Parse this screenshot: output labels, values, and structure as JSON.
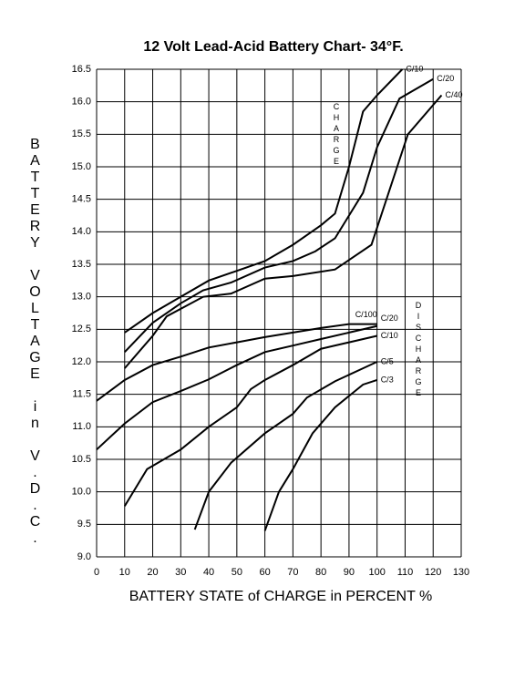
{
  "chart_data": {
    "type": "line",
    "title": "12 Volt Lead-Acid Battery Chart- 34°F.",
    "x_label": "BATTERY STATE of CHARGE in PERCENT %",
    "y_label": "BATTERY VOLTAGE in V.D.C.",
    "annotations": [
      "CHARGE",
      "DISCHARGE"
    ],
    "xlim": [
      0,
      130
    ],
    "xticks": [
      0,
      10,
      20,
      30,
      40,
      50,
      60,
      70,
      80,
      90,
      100,
      110,
      120,
      130
    ],
    "ylim": [
      9.0,
      16.5
    ],
    "yticks": [
      {
        "value": 9,
        "label": "9.0"
      },
      9.5,
      {
        "value": 10,
        "label": "10.0"
      },
      10.5,
      {
        "value": 11,
        "label": "11.0"
      },
      11.5,
      {
        "value": 12,
        "label": "12.0"
      },
      12.5,
      {
        "value": 13,
        "label": "13.0"
      },
      13.5,
      {
        "value": 14,
        "label": "14.0"
      },
      14.5,
      {
        "value": 15,
        "label": "15.0"
      },
      15.5,
      {
        "value": 16,
        "label": "16.0"
      },
      16.5
    ],
    "grid": true,
    "series": [
      {
        "name": "C/10",
        "color": "#000000",
        "x": [
          10,
          20,
          30,
          40,
          50,
          60,
          70,
          80,
          85,
          90,
          95,
          100,
          109
        ],
        "values": [
          12.45,
          12.75,
          13.0,
          13.25,
          13.4,
          13.55,
          13.8,
          14.1,
          14.28,
          15.0,
          15.85,
          16.1,
          16.5
        ]
      },
      {
        "name": "C/20",
        "color": "#000000",
        "x": [
          10,
          20,
          30,
          38,
          48,
          60,
          70,
          78,
          85,
          95,
          100,
          108,
          120
        ],
        "values": [
          12.15,
          12.6,
          12.9,
          13.1,
          13.22,
          13.45,
          13.55,
          13.7,
          13.9,
          14.6,
          15.3,
          16.05,
          16.35
        ]
      },
      {
        "name": "C/40",
        "color": "#000000",
        "x": [
          10,
          20,
          25,
          38,
          48,
          60,
          70,
          85,
          98,
          111,
          123
        ],
        "values": [
          11.9,
          12.4,
          12.7,
          13.0,
          13.05,
          13.28,
          13.32,
          13.42,
          13.8,
          15.5,
          16.1
        ]
      },
      {
        "name": "C/100",
        "color": "#000000",
        "x": [
          0,
          10,
          20,
          30,
          40,
          50,
          60,
          70,
          80,
          90,
          100
        ],
        "values": [
          11.4,
          11.72,
          11.95,
          12.08,
          12.22,
          12.3,
          12.38,
          12.45,
          12.52,
          12.58,
          12.58
        ]
      },
      {
        "name": "C/20",
        "color": "#000000",
        "x": [
          0,
          10,
          20,
          30,
          40,
          50,
          60,
          70,
          80,
          90,
          100
        ],
        "values": [
          10.65,
          11.05,
          11.38,
          11.55,
          11.73,
          11.95,
          12.15,
          12.25,
          12.35,
          12.45,
          12.55
        ]
      },
      {
        "name": "C/10",
        "color": "#000000",
        "x": [
          10,
          18,
          30,
          40,
          50,
          55,
          60,
          70,
          80,
          90,
          100
        ],
        "values": [
          9.78,
          10.35,
          10.65,
          11.0,
          11.3,
          11.58,
          11.72,
          11.95,
          12.2,
          12.3,
          12.4
        ]
      },
      {
        "name": "C/5",
        "color": "#000000",
        "x": [
          35,
          40,
          48,
          60,
          70,
          75,
          85,
          95,
          100
        ],
        "values": [
          9.42,
          10.0,
          10.45,
          10.9,
          11.2,
          11.45,
          11.7,
          11.9,
          12.0
        ]
      },
      {
        "name": "C/3",
        "color": "#000000",
        "x": [
          60,
          65,
          70,
          77,
          85,
          95,
          100
        ],
        "values": [
          9.4,
          10.0,
          10.35,
          10.9,
          11.3,
          11.65,
          11.72
        ]
      }
    ]
  }
}
